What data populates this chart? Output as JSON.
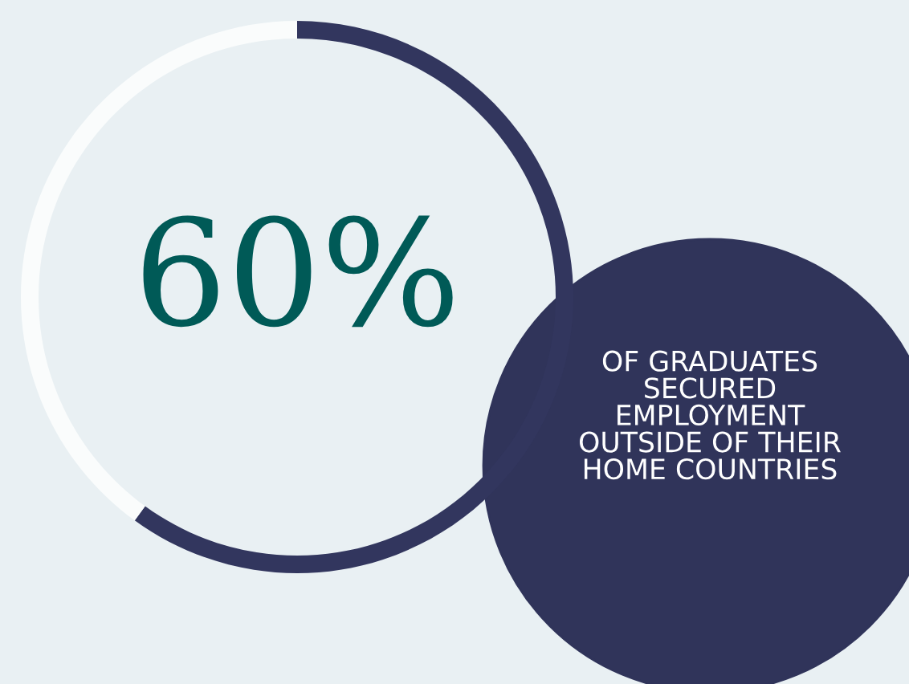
{
  "chart_data": {
    "type": "donut",
    "categories": [
      null,
      null
    ],
    "values": [
      60,
      40
    ],
    "colors": [
      "#32365e",
      "#fafcfc"
    ],
    "value_labels": [
      "60%",
      null
    ],
    "annotations": [
      "OF GRADUATES\nSECURED\nEMPLOYMENT\nOUTSIDE OF THEIR\nHOME COUNTRIES"
    ]
  }
}
